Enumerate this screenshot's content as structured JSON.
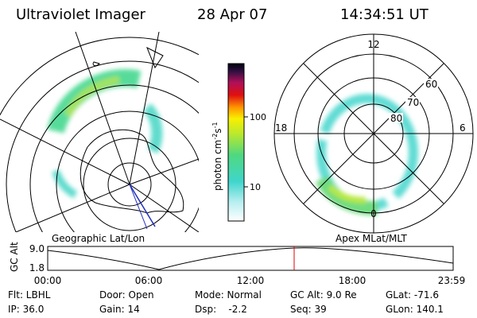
{
  "header": {
    "title": "Ultraviolet Imager",
    "date": "28 Apr 07",
    "time": "14:34:51 UT"
  },
  "colorbar": {
    "label": [
      "photon cm",
      "-2",
      "s",
      "-1"
    ],
    "ticks": [
      "100",
      "10"
    ]
  },
  "left_panel": {
    "caption": "Geographic Lat/Lon"
  },
  "right_panel": {
    "caption": "Apex MLat/MLT",
    "mlt_labels": [
      "12",
      "18",
      "6",
      "0"
    ],
    "mlat_labels": [
      "60",
      "70",
      "80"
    ]
  },
  "timeline": {
    "axis_label": "GC Alt",
    "y_labels": [
      "9.0",
      "1.8"
    ],
    "time_labels": [
      "00:00",
      "06:00",
      "12:00",
      "18:00",
      "23:59"
    ]
  },
  "footer": {
    "rows": [
      [
        "Flt: LBHL",
        "Door: Open",
        "Mode: Normal",
        "GC Alt: 9.0 Re",
        "GLat: -71.6"
      ],
      [
        "IP: 36.0",
        "Gain: 14",
        "Dsp:    -2.2",
        "Seq: 39",
        "GLon: 140.1"
      ]
    ]
  }
}
